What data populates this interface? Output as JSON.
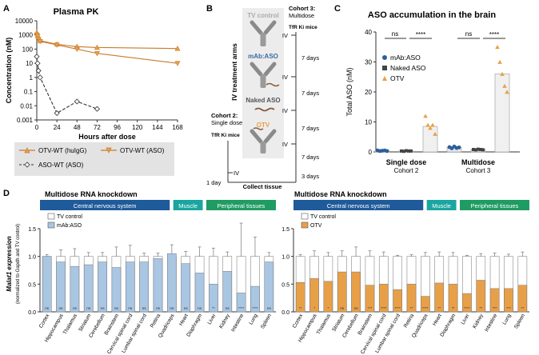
{
  "panels": {
    "A": "A",
    "B": "B",
    "C": "C",
    "D": "D"
  },
  "colors": {
    "orange": "#e8a048",
    "orange_dark": "#c97a2a",
    "blue": "#a9c6e3",
    "blue_dark": "#3d6aa4",
    "grey_fill": "#666666",
    "header_blue": "#1f5b9a",
    "header_teal": "#1aa6a0",
    "header_green": "#1f9c63",
    "cell_grey": "#c9c9c9"
  },
  "panel_a": {
    "title": "Plasma PK",
    "ylabel": "Concentration (nM)",
    "xlabel": "Hours after dose",
    "yticks": [
      "10000",
      "1000",
      "100",
      "10",
      "1",
      "0.1",
      "0.01",
      "0.001"
    ],
    "xticks": [
      "0",
      "24",
      "48",
      "72",
      "96",
      "120",
      "144",
      "168"
    ],
    "legend": [
      "OTV-WT (huIgG)",
      "OTV-WT (ASO)",
      "ASO-WT (ASO)"
    ]
  },
  "panel_b": {
    "side_label": "IV treatment arms",
    "cohort3": "Cohort 3:",
    "cohort3_sub": "Multidose",
    "tfr_ki_1": "TfR Ki mice",
    "tfr_ki_2": "TfR Ki mice",
    "cohort2": "Cohort 2:",
    "cohort2_sub": "Single dose",
    "arms": [
      "TV control",
      "mAb:ASO",
      "Naked ASO",
      "OTV"
    ],
    "iv": "IV",
    "days": [
      "7 days",
      "7 days",
      "7 days",
      "7 days",
      "3 days"
    ],
    "one_day": "1 day",
    "collect": "Collect tissue"
  },
  "panel_c": {
    "title": "ASO accumulation in the brain",
    "ylabel": "Total ASO (nM)",
    "yticks": [
      "40",
      "30",
      "20",
      "10",
      "0"
    ],
    "sig": [
      "ns",
      "****",
      "ns",
      "****"
    ],
    "legend": [
      "mAb:ASO",
      "Naked ASO",
      "OTV"
    ],
    "groups": [
      {
        "name": "Single dose",
        "sub": "Cohort 2"
      },
      {
        "name": "Multidose",
        "sub": "Cohort 3"
      }
    ]
  },
  "panel_d": {
    "titles": [
      "Multidose RNA knockdown",
      "Multidose RNA knockdown"
    ],
    "headers": [
      "Central nervous system",
      "Muscle",
      "Peripheral tissues"
    ],
    "ylabel_1": "Malat1 expression",
    "ylabel_2": "(normalized to Gapdh and TV control)",
    "yticks": [
      "1.5",
      "1.0",
      "0.5",
      "0.0"
    ],
    "legend_left": [
      "TV control",
      "mAb:ASO"
    ],
    "legend_right": [
      "TV control",
      "OTV"
    ],
    "tissues": [
      "Cortex",
      "Hippocampus",
      "Thalamus",
      "Striatum",
      "Cerebellum",
      "Brainstem",
      "Cervical spinal cord",
      "Lumbar spinal cord",
      "Retina",
      "Quadriceps",
      "Heart",
      "Diaphragm",
      "Liver",
      "Kidney",
      "Intestine",
      "Lung",
      "Spleen"
    ],
    "sig_left": [
      "ns",
      "ns",
      "ns",
      "ns",
      "ns",
      "ns",
      "ns",
      "ns",
      "ns",
      "ns",
      "ns",
      "ns",
      "**",
      "ns",
      "****",
      "****",
      "ns"
    ],
    "sig_right": [
      "**",
      "*",
      "*",
      "ns",
      "ns",
      "***",
      "****",
      "****",
      "**",
      "****",
      "**",
      "**",
      "****",
      "**",
      "***",
      "***",
      "**"
    ]
  },
  "chart_data": [
    {
      "type": "line",
      "title": "Plasma PK",
      "xlabel": "Hours after dose",
      "ylabel": "Concentration (nM)",
      "yscale": "log",
      "ylim": [
        0.001,
        10000
      ],
      "xlim": [
        0,
        168
      ],
      "series": [
        {
          "name": "OTV-WT (huIgG)",
          "x": [
            0,
            1,
            2,
            4,
            24,
            48,
            72,
            168
          ],
          "y": [
            1500,
            900,
            700,
            400,
            220,
            150,
            130,
            110
          ]
        },
        {
          "name": "OTV-WT (ASO)",
          "x": [
            0,
            1,
            2,
            4,
            24,
            48,
            72,
            168
          ],
          "y": [
            1000,
            800,
            500,
            350,
            200,
            100,
            50,
            10
          ]
        },
        {
          "name": "ASO-WT (ASO)",
          "x": [
            0,
            1,
            2,
            4,
            24,
            48,
            72
          ],
          "y": [
            30,
            10,
            3,
            1,
            0.003,
            0.02,
            0.006
          ]
        }
      ]
    },
    {
      "type": "bar",
      "title": "ASO accumulation in the brain",
      "ylabel": "Total ASO (nM)",
      "ylim": [
        0,
        40
      ],
      "categories": [
        "Single dose",
        "Multidose"
      ],
      "series": [
        {
          "name": "mAb:ASO",
          "values": [
            0.4,
            1.5
          ]
        },
        {
          "name": "Naked ASO",
          "values": [
            0.3,
            0.8
          ]
        },
        {
          "name": "OTV",
          "values": [
            8.5,
            26
          ]
        }
      ],
      "points": {
        "mAb:ASO": [
          [
            0.5,
            0.3,
            0.4,
            0.5,
            0.3
          ],
          [
            1.6,
            1.2,
            1.8,
            1.3,
            1.5
          ]
        ],
        "Naked ASO": [
          [
            0.3,
            0.2,
            0.4,
            0.3,
            0.3
          ],
          [
            0.8,
            0.7,
            0.9,
            0.8,
            0.7
          ]
        ],
        "OTV": [
          [
            12,
            9,
            8,
            9,
            6
          ],
          [
            35,
            30,
            26,
            22,
            20
          ]
        ]
      }
    },
    {
      "type": "bar",
      "title": "Multidose RNA knockdown",
      "ylabel": "Malat1 expression",
      "ylim": [
        0,
        1.5
      ],
      "categories": [
        "Cortex",
        "Hippocampus",
        "Thalamus",
        "Striatum",
        "Cerebellum",
        "Brainstem",
        "Cervical spinal cord",
        "Lumbar spinal cord",
        "Retina",
        "Quadriceps",
        "Heart",
        "Diaphragm",
        "Liver",
        "Kidney",
        "Intestine",
        "Lung",
        "Spleen"
      ],
      "series": [
        {
          "name": "TV control",
          "values": [
            1,
            1,
            1,
            1,
            1,
            1,
            1,
            1,
            1,
            1,
            1,
            1,
            1,
            1,
            1,
            1,
            1
          ]
        },
        {
          "name": "mAb:ASO",
          "values": [
            1.0,
            0.9,
            0.82,
            0.85,
            0.9,
            0.8,
            0.9,
            0.9,
            0.96,
            1.05,
            0.87,
            0.7,
            0.5,
            0.73,
            0.34,
            0.46,
            0.9
          ]
        }
      ],
      "errors": [
        0.03,
        0.12,
        0.14,
        0.07,
        0.07,
        0.17,
        0.2,
        0.06,
        0.06,
        0.16,
        0.09,
        0.17,
        0.15,
        0.08,
        0.6,
        0.35,
        0.07
      ]
    },
    {
      "type": "bar",
      "title": "Multidose RNA knockdown",
      "ylabel": "Malat1 expression",
      "ylim": [
        0,
        1.5
      ],
      "categories": [
        "Cortex",
        "Hippocampus",
        "Thalamus",
        "Striatum",
        "Cerebellum",
        "Brainstem",
        "Cervical spinal cord",
        "Lumbar spinal cord",
        "Retina",
        "Quadriceps",
        "Heart",
        "Diaphragm",
        "Liver",
        "Kidney",
        "Intestine",
        "Lung",
        "Spleen"
      ],
      "series": [
        {
          "name": "TV control",
          "values": [
            1,
            1,
            1,
            1,
            1,
            1,
            1,
            1,
            1,
            1,
            1,
            1,
            1,
            1,
            1,
            1,
            1
          ]
        },
        {
          "name": "OTV",
          "values": [
            0.53,
            0.6,
            0.55,
            0.72,
            0.72,
            0.48,
            0.5,
            0.4,
            0.5,
            0.28,
            0.52,
            0.5,
            0.33,
            0.57,
            0.42,
            0.42,
            0.48
          ]
        }
      ],
      "errors": [
        0.03,
        0.1,
        0.07,
        0.1,
        0.17,
        0.1,
        0.08,
        0.02,
        0.03,
        0.07,
        0.08,
        0.07,
        0.02,
        0.05,
        0.06,
        0.04,
        0.08
      ]
    }
  ]
}
